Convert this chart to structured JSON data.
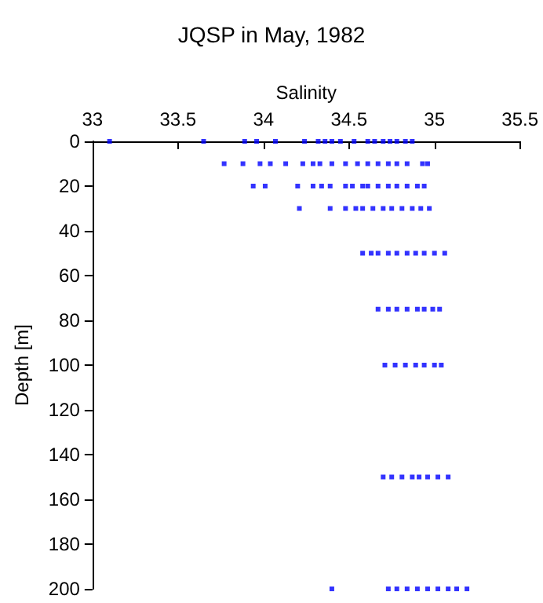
{
  "chart_data": {
    "type": "scatter",
    "title": "JQSP in May, 1982",
    "xlabel": "Salinity",
    "ylabel": "Depth [m]",
    "x": [
      33.1,
      33.65,
      33.89,
      33.96,
      34.07,
      34.24,
      34.32,
      34.36,
      34.4,
      34.45,
      34.53,
      34.61,
      34.65,
      34.7,
      34.74,
      34.78,
      34.83,
      34.87,
      33.77,
      33.88,
      33.98,
      34.04,
      34.13,
      34.23,
      34.29,
      34.33,
      34.4,
      34.48,
      34.55,
      34.61,
      34.67,
      34.73,
      34.78,
      34.84,
      34.93,
      34.96,
      33.94,
      34.01,
      34.2,
      34.29,
      34.34,
      34.39,
      34.48,
      34.52,
      34.58,
      34.61,
      34.67,
      34.73,
      34.78,
      34.84,
      34.9,
      34.94,
      34.21,
      34.39,
      34.48,
      34.54,
      34.58,
      34.64,
      34.7,
      34.75,
      34.81,
      34.87,
      34.92,
      34.97,
      34.58,
      34.63,
      34.67,
      34.73,
      34.78,
      34.84,
      34.89,
      34.94,
      35.0,
      35.06,
      34.67,
      34.73,
      34.78,
      34.84,
      34.9,
      34.94,
      34.99,
      35.03,
      34.71,
      34.77,
      34.83,
      34.89,
      34.94,
      35.0,
      35.04,
      34.7,
      34.75,
      34.81,
      34.87,
      34.91,
      34.96,
      35.02,
      35.08,
      34.4,
      34.73,
      34.78,
      34.84,
      34.9,
      34.96,
      35.02,
      35.08,
      35.13,
      35.19
    ],
    "series": [
      {
        "color": "#0000ff",
        "values": [
          0,
          0,
          0,
          0,
          0,
          0,
          0,
          0,
          0,
          0,
          0,
          0,
          0,
          0,
          0,
          0,
          0,
          0,
          10,
          10,
          10,
          10,
          10,
          10,
          10,
          10,
          10,
          10,
          10,
          10,
          10,
          10,
          10,
          10,
          10,
          10,
          20,
          20,
          20,
          20,
          20,
          20,
          20,
          20,
          20,
          20,
          20,
          20,
          20,
          20,
          20,
          20,
          30,
          30,
          30,
          30,
          30,
          30,
          30,
          30,
          30,
          30,
          30,
          30,
          50,
          50,
          50,
          50,
          50,
          50,
          50,
          50,
          50,
          50,
          75,
          75,
          75,
          75,
          75,
          75,
          75,
          75,
          100,
          100,
          100,
          100,
          100,
          100,
          100,
          150,
          150,
          150,
          150,
          150,
          150,
          150,
          150,
          200,
          200,
          200,
          200,
          200,
          200,
          200,
          200,
          200,
          200
        ]
      }
    ],
    "xlim": [
      33,
      35.5
    ],
    "xticks": [
      33,
      33.5,
      34,
      34.5,
      35,
      35.5
    ],
    "ylim": [
      200,
      0
    ],
    "yticks": [
      0,
      20,
      40,
      60,
      80,
      100,
      120,
      140,
      160,
      180,
      200
    ],
    "grid": false,
    "marker": "square"
  }
}
